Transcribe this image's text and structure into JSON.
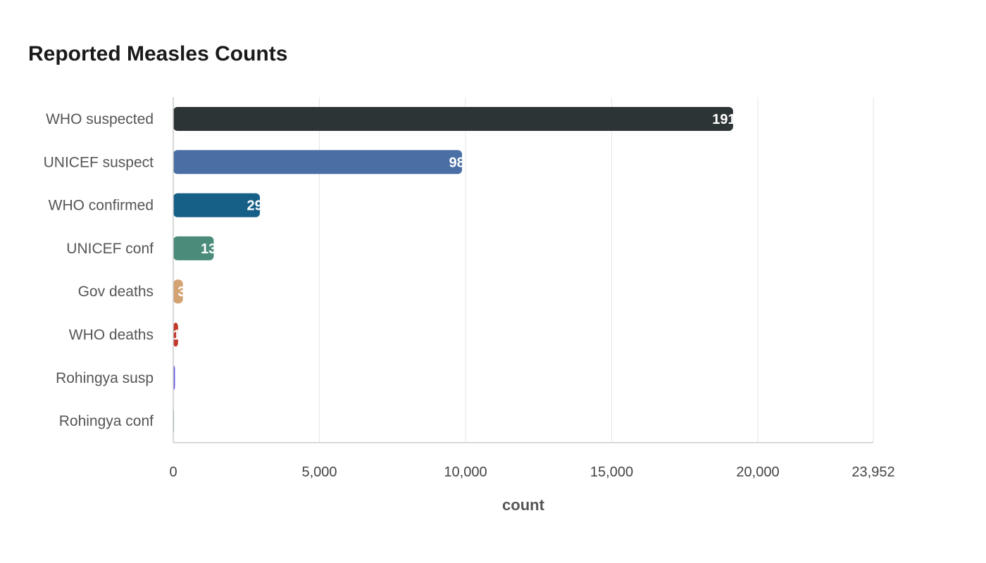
{
  "chart_data": {
    "type": "bar",
    "orientation": "horizontal",
    "title": "Reported Measles Counts",
    "xlabel": "count",
    "ylabel": "",
    "categories": [
      "WHO suspected",
      "UNICEF suspect",
      "WHO confirmed",
      "UNICEF conf",
      "Gov deaths",
      "WHO deaths",
      "Rohingya susp",
      "Rohingya conf"
    ],
    "values": [
      19154,
      9880,
      2965,
      1385,
      330,
      165,
      60,
      12
    ],
    "colors": [
      "#2d3436",
      "#4a6fa5",
      "#166088",
      "#4a8b7a",
      "#d4a373",
      "#c0392b",
      "#6c5ce7",
      "#2c6e7f"
    ],
    "xlim": [
      0,
      23952
    ],
    "xticks": [
      0,
      5000,
      10000,
      15000,
      20000,
      23952
    ],
    "xtick_labels": [
      "0",
      "5,000",
      "10,000",
      "15,000",
      "20,000",
      "23,952"
    ],
    "grid": true,
    "legend": "none"
  }
}
